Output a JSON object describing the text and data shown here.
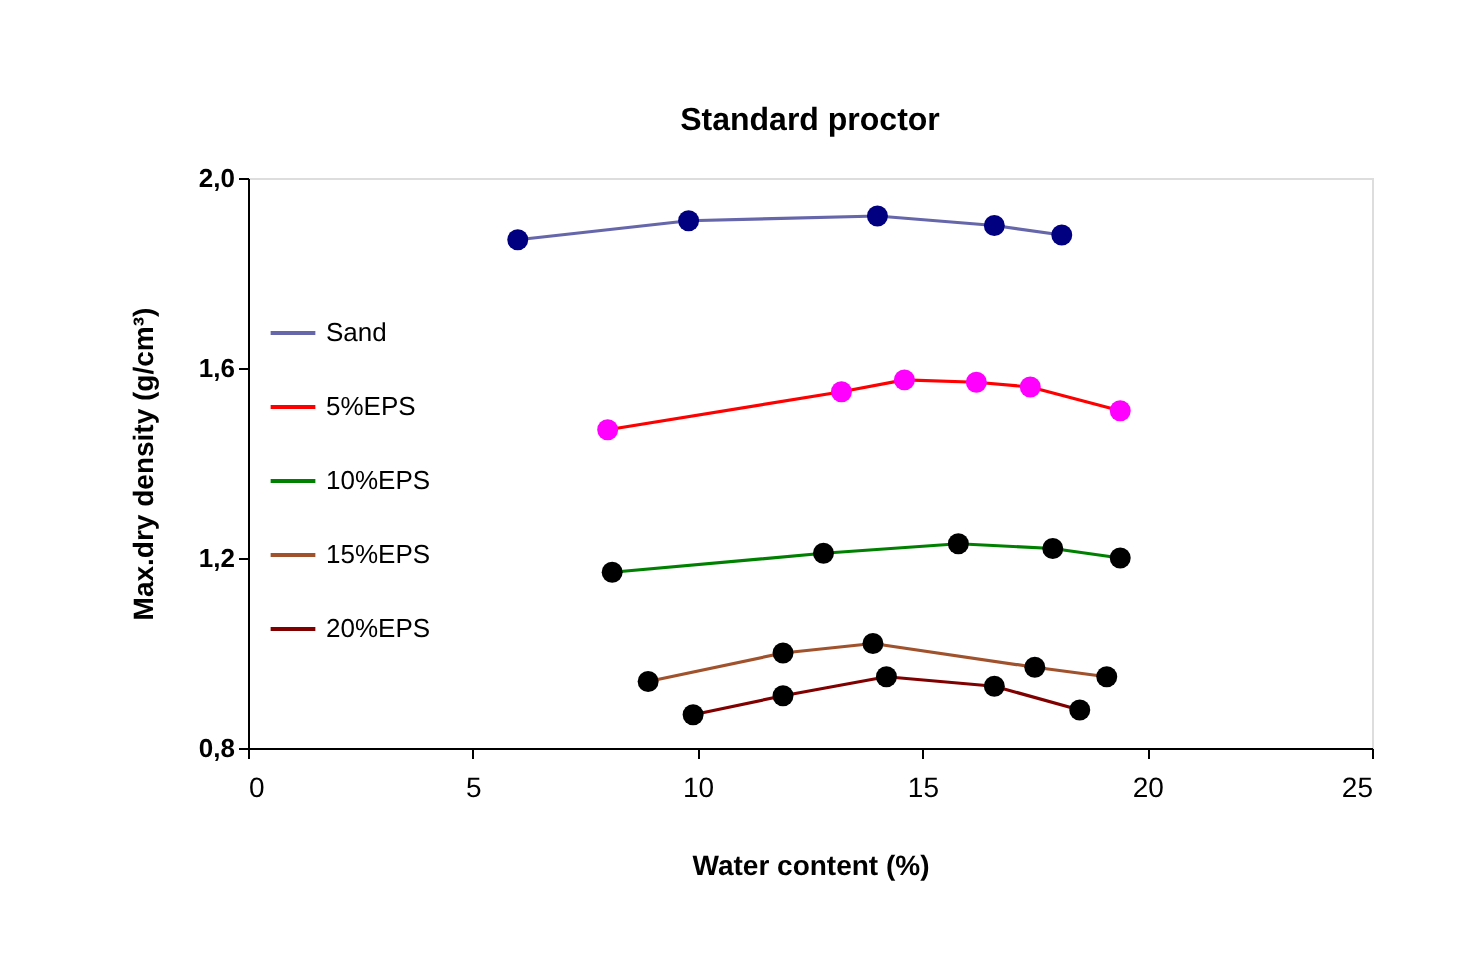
{
  "chart_data": {
    "type": "line",
    "title": "Standard proctor",
    "xlabel": "Water content (%)",
    "ylabel": "Max.dry density (g/cm³)",
    "xlim": [
      0,
      25
    ],
    "xticks": [
      0,
      5,
      10,
      15,
      20,
      25
    ],
    "ylim": [
      0.8,
      2.0
    ],
    "yticks": [
      {
        "value": 0.8,
        "label": "0,8"
      },
      {
        "value": 1.2,
        "label": "1,2"
      },
      {
        "value": 1.6,
        "label": "1,6"
      },
      {
        "value": 2.0,
        "label": "2,0"
      }
    ],
    "grid": false,
    "legend": "left",
    "marker": "circle",
    "line_style": "solid",
    "series": [
      {
        "name": "Sand",
        "color": "#6666aa",
        "colors": [
          "#000080",
          "#000080",
          "#000080",
          "#000080",
          "#000080"
        ],
        "x": [
          6.0,
          9.8,
          14.0,
          16.6,
          18.1
        ],
        "values": [
          1.87,
          1.91,
          1.92,
          1.9,
          1.88
        ]
      },
      {
        "name": "5%EPS",
        "color": "#ff0000",
        "colors": [
          "#ff00ff",
          "#ff00ff",
          "#ff00ff",
          "#ff00ff",
          "#ff00ff",
          "#ff00ff"
        ],
        "x": [
          8.0,
          13.2,
          14.6,
          16.2,
          17.4,
          19.4
        ],
        "values": [
          1.47,
          1.55,
          1.575,
          1.57,
          1.56,
          1.51
        ]
      },
      {
        "name": "10%EPS",
        "color": "#008000",
        "colors": [
          "#000000",
          "#000000",
          "#000000",
          "#000000",
          "#000000"
        ],
        "x": [
          8.1,
          12.8,
          15.8,
          17.9,
          19.4
        ],
        "values": [
          1.17,
          1.21,
          1.23,
          1.22,
          1.2
        ]
      },
      {
        "name": "15%EPS",
        "color": "#a0522d",
        "colors": [
          "#000000",
          "#000000",
          "#000000",
          "#000000",
          "#000000"
        ],
        "x": [
          8.9,
          11.9,
          13.9,
          17.5,
          19.1
        ],
        "values": [
          0.94,
          1.0,
          1.02,
          0.97,
          0.95
        ]
      },
      {
        "name": "20%EPS",
        "color": "#800000",
        "colors": [
          "#000000",
          "#000000",
          "#000000",
          "#000000",
          "#000000"
        ],
        "x": [
          9.9,
          11.9,
          14.2,
          16.6,
          18.5
        ],
        "values": [
          0.87,
          0.91,
          0.95,
          0.93,
          0.88
        ]
      }
    ]
  }
}
